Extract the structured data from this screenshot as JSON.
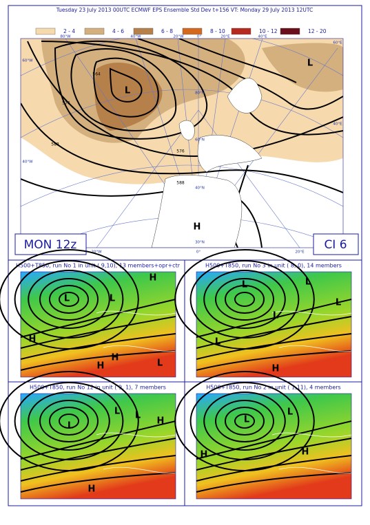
{
  "header": {
    "title": "Tuesday 23 July 2013 00UTC ECMWF  EPS Ensemble Std Dev t+156 VT: Monday 29 July 2013 12UTC"
  },
  "legend": [
    {
      "label": "2 - 4",
      "color": "#f6d9ad"
    },
    {
      "label": "4 - 6",
      "color": "#d3b07e"
    },
    {
      "label": "6 - 8",
      "color": "#b5804a"
    },
    {
      "label": "8 - 10",
      "color": "#d2691e"
    },
    {
      "label": "10 - 12",
      "color": "#b52a1f"
    },
    {
      "label": "12 - 20",
      "color": "#6a0e1c"
    }
  ],
  "main_map": {
    "day_label": "MON 12z",
    "ci_label": "CI  6",
    "grid_labels": [
      "80°W",
      "40°W",
      "20°W",
      "0°",
      "20°E",
      "40°E",
      "60°E",
      "60°W",
      "40°W",
      "40°E",
      "20°W",
      "0°",
      "20°E",
      "80°N",
      "60°N",
      "40°N",
      "30°N"
    ],
    "contour_labels": [
      "564",
      "576",
      "588",
      "576",
      "588"
    ],
    "markers": [
      "L",
      "L",
      "H"
    ]
  },
  "panels": [
    {
      "title": "H500+T850, run No  1 in unit ( 9,10), 13 members+opr+ctr",
      "markers": [
        "L",
        "L",
        "H",
        "H",
        "H",
        "H",
        "L"
      ]
    },
    {
      "title": "H500+T850, run No  3 in unit ( 8, 0), 14 members",
      "markers": [
        "L",
        "L",
        "L",
        "L",
        "L",
        "H"
      ]
    },
    {
      "title": "H500+T850, run No 12 in unit ( 9, 1), 7 members",
      "markers": [
        "L",
        "L",
        "L",
        "H",
        "H"
      ]
    },
    {
      "title": "H500+T850, run No  2 in unit ( 1,11), 4 members",
      "markers": [
        "L",
        "L",
        "H",
        "H"
      ]
    }
  ]
}
